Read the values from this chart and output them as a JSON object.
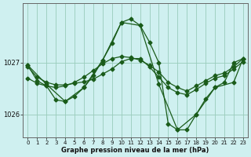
{
  "xlabel": "Graphe pression niveau de la mer (hPa)",
  "background_color": "#cff0f0",
  "grid_color": "#99ccbb",
  "line_color": "#1a5c1a",
  "xlim": [
    -0.5,
    23.5
  ],
  "ylim": [
    1025.55,
    1028.15
  ],
  "yticks": [
    1026,
    1027
  ],
  "xticks": [
    0,
    1,
    2,
    3,
    4,
    5,
    6,
    7,
    8,
    9,
    10,
    11,
    12,
    13,
    14,
    15,
    16,
    17,
    18,
    19,
    20,
    21,
    22,
    23
  ],
  "s1_x": [
    0,
    1,
    2,
    3,
    4,
    5,
    6,
    7,
    8,
    9,
    10,
    11,
    12,
    13,
    14,
    15,
    16,
    17,
    18,
    19,
    20,
    21,
    22,
    23
  ],
  "s1_y": [
    1026.92,
    1026.72,
    1026.62,
    1026.57,
    1026.57,
    1026.6,
    1026.63,
    1026.68,
    1026.78,
    1026.88,
    1027.02,
    1027.08,
    1027.08,
    1026.92,
    1026.72,
    1026.52,
    1026.42,
    1026.38,
    1026.48,
    1026.6,
    1026.7,
    1026.75,
    1026.88,
    1027.02
  ],
  "s2_x": [
    0,
    1,
    2,
    3,
    4,
    5,
    6,
    7,
    8,
    9,
    10,
    11,
    12,
    13,
    14,
    15,
    16,
    17,
    18,
    19,
    20,
    21,
    22,
    23
  ],
  "s2_y": [
    1026.95,
    1026.65,
    1026.55,
    1026.28,
    1026.25,
    1026.35,
    1026.52,
    1026.75,
    1027.05,
    1027.38,
    1027.78,
    1027.85,
    1027.72,
    1027.4,
    1027.0,
    1025.82,
    1025.7,
    1025.7,
    1026.0,
    1026.3,
    1026.52,
    1026.62,
    1027.0,
    1027.08
  ],
  "s3_x": [
    0,
    2,
    4,
    6,
    8,
    10,
    12,
    14,
    16,
    18,
    20,
    22,
    23
  ],
  "s3_y": [
    1026.95,
    1026.58,
    1026.25,
    1026.52,
    1027.05,
    1027.78,
    1027.72,
    1026.58,
    1025.7,
    1026.0,
    1026.52,
    1026.62,
    1027.08
  ],
  "s4_x": [
    0,
    1,
    2,
    3,
    4,
    5,
    6,
    7,
    8,
    9,
    10,
    11,
    12,
    13,
    14,
    15,
    16,
    17,
    18,
    19,
    20,
    21,
    22,
    23
  ],
  "s4_y": [
    1026.7,
    1026.6,
    1026.55,
    1026.52,
    1026.55,
    1026.62,
    1026.72,
    1026.85,
    1026.98,
    1027.08,
    1027.12,
    1027.1,
    1027.05,
    1026.95,
    1026.82,
    1026.62,
    1026.52,
    1026.45,
    1026.55,
    1026.65,
    1026.75,
    1026.8,
    1026.92,
    1027.08
  ]
}
